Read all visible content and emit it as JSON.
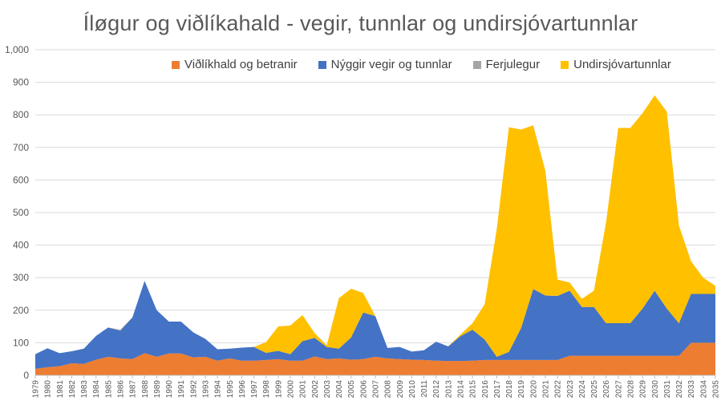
{
  "chart_data": {
    "type": "area",
    "stacked": true,
    "title": "Íløgur og viðlíkahald - vegir, tunnlar og undirsjóvartunnlar",
    "xlabel": "",
    "ylabel": "",
    "ylim": [
      0,
      1000
    ],
    "y_ticks": [
      "0",
      "100",
      "200",
      "300",
      "400",
      "500",
      "600",
      "700",
      "800",
      "900",
      "1,000"
    ],
    "grid": "horizontal",
    "legend_position": "top",
    "x": [
      "1979",
      "1980",
      "1981",
      "1982",
      "1983",
      "1984",
      "1985",
      "1986",
      "1987",
      "1988",
      "1989",
      "1990",
      "1991",
      "1992",
      "1993",
      "1994",
      "1995",
      "1996",
      "1997",
      "1998",
      "1999",
      "2000",
      "2001",
      "2002",
      "2003",
      "2004",
      "2005",
      "2006",
      "2007",
      "2008",
      "2009",
      "2010",
      "2011",
      "2012",
      "2013",
      "2014",
      "2015",
      "2016",
      "2017",
      "2018",
      "2019",
      "2020",
      "2021",
      "2022",
      "2023",
      "2024",
      "2025",
      "2026",
      "2027",
      "2028",
      "2029",
      "2030",
      "2031",
      "2032",
      "2033",
      "2034",
      "2035"
    ],
    "series": [
      {
        "name": "Viðlíkhald og betranir",
        "color": "#ED7D31",
        "values": [
          20,
          25,
          28,
          37,
          35,
          48,
          57,
          52,
          50,
          68,
          57,
          67,
          67,
          55,
          57,
          45,
          52,
          45,
          45,
          47,
          50,
          45,
          45,
          58,
          50,
          52,
          48,
          50,
          57,
          52,
          50,
          48,
          47,
          45,
          44,
          44,
          45,
          47,
          47,
          47,
          47,
          47,
          47,
          47,
          60,
          60,
          60,
          60,
          60,
          60,
          60,
          60,
          60,
          60,
          100,
          100,
          100
        ]
      },
      {
        "name": "Nýggir vegir og tunnlar",
        "color": "#4472C4",
        "values": [
          45,
          58,
          40,
          37,
          47,
          73,
          90,
          85,
          128,
          222,
          143,
          98,
          98,
          77,
          55,
          35,
          30,
          40,
          42,
          22,
          25,
          20,
          60,
          57,
          37,
          30,
          68,
          143,
          125,
          32,
          37,
          25,
          30,
          58,
          45,
          76,
          95,
          63,
          10,
          25,
          98,
          218,
          198,
          197,
          200,
          150,
          150,
          100,
          100,
          100,
          145,
          200,
          145,
          100,
          150,
          150,
          150
        ]
      },
      {
        "name": "Ferjulegur",
        "color": "#A5A5A5",
        "values": [
          0,
          0,
          0,
          0,
          0,
          0,
          0,
          3,
          0,
          0,
          0,
          0,
          0,
          0,
          0,
          0,
          0,
          0,
          0,
          0,
          0,
          0,
          0,
          0,
          0,
          0,
          0,
          0,
          0,
          0,
          0,
          0,
          0,
          0,
          0,
          0,
          0,
          0,
          0,
          0,
          0,
          0,
          0,
          0,
          0,
          0,
          0,
          0,
          0,
          0,
          0,
          0,
          0,
          0,
          0,
          0,
          0
        ]
      },
      {
        "name": "Undirsjóvartunnlar",
        "color": "#FFC000",
        "values": [
          0,
          0,
          0,
          0,
          0,
          0,
          0,
          0,
          0,
          0,
          0,
          0,
          0,
          0,
          0,
          0,
          0,
          0,
          0,
          33,
          75,
          88,
          80,
          15,
          5,
          155,
          150,
          60,
          0,
          0,
          0,
          0,
          0,
          0,
          0,
          5,
          20,
          108,
          393,
          690,
          610,
          503,
          383,
          50,
          25,
          25,
          50,
          310,
          600,
          600,
          600,
          600,
          605,
          300,
          100,
          50,
          25
        ]
      }
    ]
  }
}
